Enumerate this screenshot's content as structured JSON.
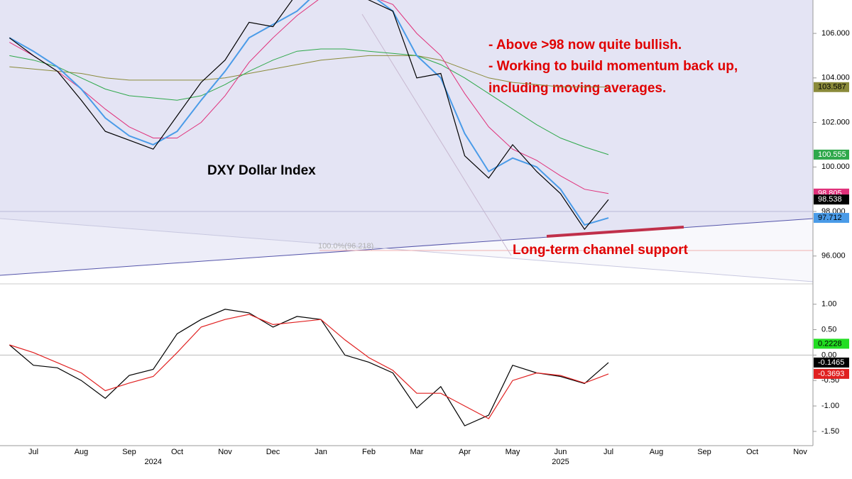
{
  "chart_data": [
    {
      "type": "line",
      "title": "DXY Dollar Index",
      "annotations": [
        "- Above >98 now quite bullish.",
        "- Working to build momentum back up,",
        "including moving averages.",
        "Long-term channel support",
        "100.0%(96.218)"
      ],
      "categories": [
        null,
        "Jul",
        null,
        "Aug",
        null,
        "Sep",
        null,
        "Oct",
        null,
        "Nov",
        null,
        "Dec",
        null,
        "Jan",
        null,
        "Feb",
        null,
        "Mar",
        null,
        "Apr",
        null,
        "May",
        null,
        "Jun",
        null,
        "Jul",
        null,
        "Aug",
        null,
        "Sep",
        null,
        "Oct",
        null,
        "Nov"
      ],
      "year_labels": [
        null,
        null,
        null,
        null,
        null,
        null,
        "2024",
        null,
        null,
        null,
        null,
        null,
        null,
        null,
        null,
        null,
        null,
        null,
        null,
        null,
        null,
        null,
        null,
        "2025",
        null,
        null,
        null,
        null,
        null,
        null,
        null,
        null,
        null,
        null
      ],
      "ylim": [
        94.75,
        107.5
      ],
      "yticks": [
        {
          "value": 96,
          "label": "96.000"
        },
        {
          "value": 98,
          "label": "98.000"
        },
        {
          "value": 100,
          "label": "100.000"
        },
        {
          "value": 102,
          "label": "102.000"
        },
        {
          "value": 104,
          "label": "104.000"
        },
        {
          "value": 106,
          "label": "106.000"
        }
      ],
      "series": [
        {
          "color": "#8a8a3a",
          "width": 1,
          "label_text_color": "#000",
          "last_label": "103.587",
          "values": [
            104.5,
            104.4,
            104.3,
            104.2,
            104.0,
            103.9,
            103.9,
            103.9,
            103.9,
            104.0,
            104.2,
            104.4,
            104.6,
            104.8,
            104.9,
            105.0,
            105.0,
            105.0,
            104.8,
            104.4,
            104.0,
            103.8,
            103.7,
            103.6,
            103.6,
            103.587,
            null,
            null,
            null,
            null,
            null,
            null,
            null,
            null
          ]
        },
        {
          "color": "#2ea84a",
          "width": 1,
          "label_text_color": "#fff",
          "last_label": "100.555",
          "values": [
            105.0,
            104.8,
            104.5,
            104.0,
            103.5,
            103.2,
            103.1,
            103.0,
            103.2,
            103.7,
            104.3,
            104.8,
            105.2,
            105.3,
            105.3,
            105.2,
            105.1,
            105.0,
            104.6,
            104.0,
            103.3,
            102.6,
            101.9,
            101.3,
            100.9,
            100.555,
            null,
            null,
            null,
            null,
            null,
            null,
            null,
            null
          ]
        },
        {
          "color": "#e0307a",
          "width": 1,
          "label_text_color": "#fff",
          "last_label": "98.805",
          "values": [
            105.6,
            105.0,
            104.3,
            103.5,
            102.6,
            101.8,
            101.3,
            101.3,
            102.0,
            103.2,
            104.7,
            105.8,
            106.8,
            107.6,
            107.8,
            107.7,
            107.3,
            106.0,
            105.0,
            103.3,
            101.8,
            100.8,
            100.3,
            99.6,
            99.0,
            98.805,
            null,
            null,
            null,
            null,
            null,
            null,
            null,
            null
          ]
        },
        {
          "color": "#4a9be8",
          "width": 2,
          "label_text_color": "#000",
          "last_label": "97.712",
          "values": [
            105.8,
            105.2,
            104.5,
            103.5,
            102.2,
            101.4,
            101.0,
            101.6,
            103.0,
            104.3,
            105.8,
            106.4,
            107.0,
            108.0,
            108.2,
            107.8,
            107.0,
            105.0,
            104.0,
            101.5,
            99.8,
            100.4,
            100.0,
            99.0,
            97.4,
            97.712,
            null,
            null,
            null,
            null,
            null,
            null,
            null,
            null
          ]
        },
        {
          "color": "#000000",
          "width": 1.2,
          "label_text_color": "#fff",
          "last_label": "98.538",
          "values": [
            105.8,
            105.0,
            104.3,
            103.0,
            101.6,
            101.2,
            100.8,
            102.3,
            103.8,
            104.8,
            106.5,
            106.3,
            107.8,
            108.5,
            108.0,
            107.5,
            107.0,
            104.0,
            104.2,
            100.5,
            99.5,
            101.0,
            99.8,
            98.8,
            97.2,
            98.538,
            null,
            null,
            null,
            null,
            null,
            null,
            null,
            null
          ]
        }
      ]
    },
    {
      "type": "line",
      "ylim": [
        -1.78,
        1.4
      ],
      "yticks": [
        {
          "value": 1,
          "label": "1.00"
        },
        {
          "value": 0.5,
          "label": "0.50"
        },
        {
          "value": 0,
          "label": "0.00"
        },
        {
          "value": -0.5,
          "label": "-0.50"
        },
        {
          "value": -1,
          "label": "-1.00"
        },
        {
          "value": -1.5,
          "label": "-1.50"
        }
      ],
      "series": [
        {
          "color": "#000000",
          "width": 1.2,
          "label_text_color": "#fff",
          "last_label": "-0.1465",
          "values": [
            0.2,
            -0.2,
            -0.25,
            -0.5,
            -0.85,
            -0.4,
            -0.28,
            0.42,
            0.7,
            0.9,
            0.83,
            0.55,
            0.76,
            0.7,
            0.0,
            -0.14,
            -0.35,
            -1.04,
            -0.62,
            -1.39,
            -1.18,
            -0.2,
            -0.35,
            -0.42,
            -0.56,
            -0.1465,
            null,
            null,
            null,
            null,
            null,
            null,
            null,
            null
          ]
        },
        {
          "color": "#e02020",
          "width": 1.2,
          "label_text_color": "#fff",
          "last_label": "-0.3693",
          "values": [
            0.2,
            0.05,
            -0.15,
            -0.35,
            -0.7,
            -0.55,
            -0.42,
            0.05,
            0.55,
            0.7,
            0.8,
            0.6,
            0.65,
            0.7,
            0.3,
            -0.05,
            -0.3,
            -0.75,
            -0.75,
            -1.0,
            -1.25,
            -0.5,
            -0.35,
            -0.4,
            -0.55,
            -0.3693,
            null,
            null,
            null,
            null,
            null,
            null,
            null,
            null
          ]
        },
        {
          "color": "#22dd22",
          "width": 0,
          "label_text_color": "#000",
          "last_label": "0.2228",
          "values": [
            null,
            null,
            null,
            null,
            null,
            null,
            null,
            null,
            null,
            null,
            null,
            null,
            null,
            null,
            null,
            null,
            null,
            null,
            null,
            null,
            null,
            null,
            null,
            null,
            null,
            0.2228,
            null,
            null,
            null,
            null,
            null,
            null,
            null,
            null
          ]
        }
      ]
    }
  ]
}
